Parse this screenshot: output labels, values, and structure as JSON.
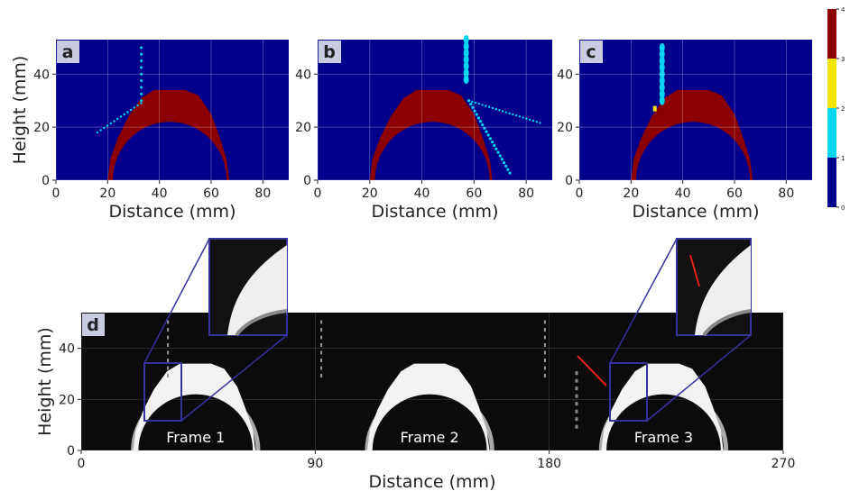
{
  "panels": [
    {
      "label": "a",
      "xlabel": "Distance (mm)",
      "ylabel": "Height (mm)",
      "xlim": [
        0,
        90
      ],
      "ylim": [
        0,
        53
      ],
      "xticks": [
        0,
        20,
        40,
        60,
        80
      ],
      "yticks": [
        0,
        20,
        40
      ]
    },
    {
      "label": "b",
      "xlabel": "Distance (mm)",
      "xlim": [
        0,
        90
      ],
      "ylim": [
        0,
        53
      ],
      "xticks": [
        0,
        20,
        40,
        60,
        80
      ],
      "yticks": [
        0,
        20,
        40
      ]
    },
    {
      "label": "c",
      "xlabel": "Distance (mm)",
      "xlim": [
        0,
        90
      ],
      "ylim": [
        0,
        53
      ],
      "xticks": [
        0,
        20,
        40,
        60,
        80
      ],
      "yticks": [
        0,
        20,
        40
      ]
    }
  ],
  "colorbar": {
    "lim": [
      0,
      4
    ],
    "ticks": [
      0,
      1,
      2,
      3,
      4
    ],
    "colors": [
      "#00008b",
      "#00d4f0",
      "#f2e400",
      "#8b0000"
    ]
  },
  "photo": {
    "label": "d",
    "xlabel": "Distance (mm)",
    "ylabel": "Height (mm)",
    "xlim": [
      0,
      270
    ],
    "ylim": [
      0,
      54
    ],
    "xticks": [
      0,
      90,
      180,
      270
    ],
    "yticks": [
      0,
      20,
      40
    ],
    "frames": [
      "Frame 1",
      "Frame 2",
      "Frame 3"
    ]
  }
}
